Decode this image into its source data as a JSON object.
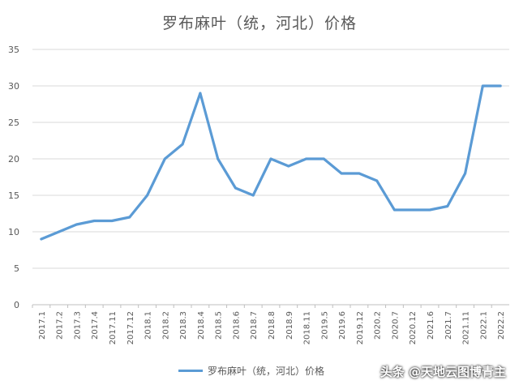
{
  "chart_data": {
    "type": "line",
    "title": "罗布麻叶（统，河北）价格",
    "xlabel": "",
    "ylabel": "",
    "ylim": [
      0,
      35
    ],
    "yticks": [
      0,
      5,
      10,
      15,
      20,
      25,
      30,
      35
    ],
    "grid": true,
    "legend_position": "bottom",
    "categories": [
      "2017.1",
      "2017.2",
      "2017.3",
      "2017.4",
      "2017.11",
      "2017.12",
      "2018.1",
      "2018.2",
      "2018.3",
      "2018.4",
      "2018.5",
      "2018.6",
      "2018.7",
      "2018.8",
      "2018.9",
      "2018.11",
      "2019.5",
      "2019.6",
      "2019.12",
      "2020.2",
      "2020.7",
      "2020.12",
      "2021.6",
      "2021.7",
      "2021.11",
      "2022.1",
      "2022.2"
    ],
    "series": [
      {
        "name": "罗布麻叶（统，河北）价格",
        "color": "#5B9BD5",
        "values": [
          9,
          10,
          11,
          11.5,
          11.5,
          12,
          15,
          20,
          22,
          29,
          20,
          16,
          15,
          20,
          19,
          20,
          20,
          18,
          18,
          17,
          13,
          13,
          13,
          13.5,
          18,
          30,
          30
        ]
      }
    ]
  },
  "watermark": "头条 @天地云图博青主"
}
